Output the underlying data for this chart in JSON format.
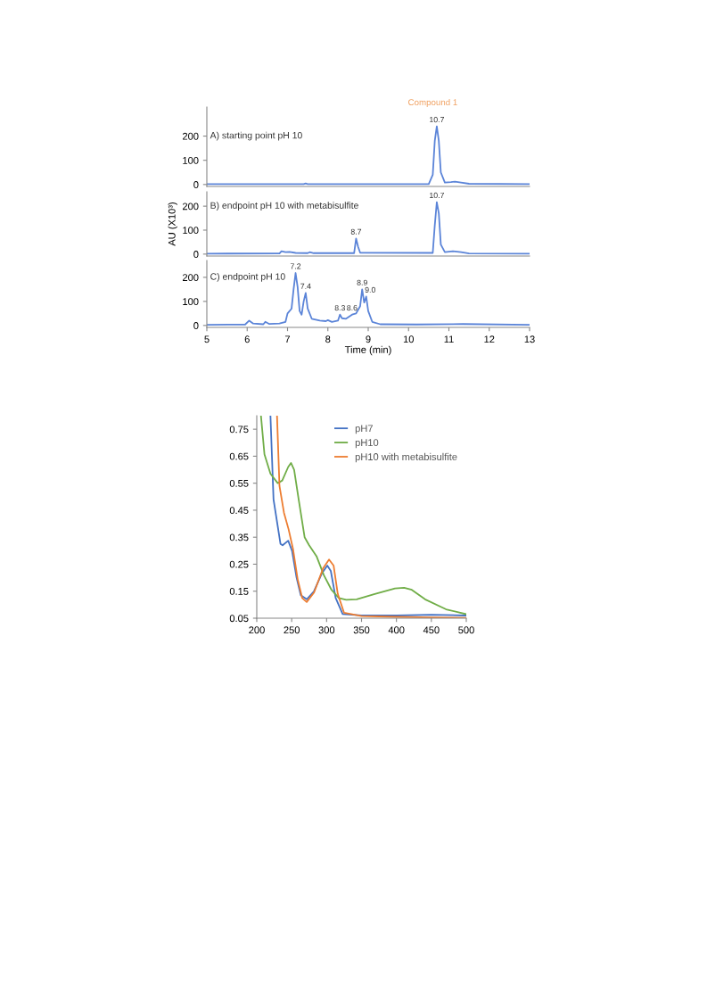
{
  "chart_data": [
    {
      "type": "line",
      "title": "A) starting point pH 10",
      "xlim": [
        5,
        13
      ],
      "xticks": [
        5,
        6,
        7,
        8,
        9,
        10,
        11,
        12,
        13
      ],
      "ylim": [
        -8,
        320
      ],
      "yticks": [
        0,
        100,
        200
      ],
      "tick_labels": "y",
      "grid": false,
      "legend": false,
      "series": [
        {
          "color": "#5b84d8",
          "x": [
            5,
            7.4,
            7.45,
            7.5,
            10.5,
            10.6,
            10.65,
            10.7,
            10.75,
            10.8,
            10.9,
            11.05,
            11.15,
            11.3,
            11.5,
            13
          ],
          "values": [
            2,
            2,
            4,
            2,
            2,
            40,
            180,
            240,
            180,
            50,
            8,
            10,
            12,
            8,
            3,
            2
          ]
        }
      ],
      "annotations": [
        "Compound 1",
        {
          "text": "10.7",
          "x": 10.7,
          "y": 240
        }
      ]
    },
    {
      "type": "line",
      "title": "B) endpoint pH 10 with metabisulfite",
      "ylabel": "AU (X10³)",
      "xlim": [
        5,
        13
      ],
      "xticks": [
        5,
        6,
        7,
        8,
        9,
        10,
        11,
        12,
        13
      ],
      "ylim": [
        -8,
        260
      ],
      "yticks": [
        0,
        100,
        200
      ],
      "tick_labels": "y",
      "grid": false,
      "legend": false,
      "series": [
        {
          "color": "#5b84d8",
          "x": [
            5,
            6.8,
            6.85,
            6.95,
            7.05,
            7.2,
            7.5,
            7.55,
            7.65,
            8.65,
            8.7,
            8.75,
            8.8,
            10.6,
            10.65,
            10.7,
            10.75,
            10.8,
            10.9,
            11.1,
            11.3,
            11.5,
            13
          ],
          "values": [
            2,
            3,
            12,
            8,
            9,
            5,
            4,
            8,
            4,
            4,
            65,
            30,
            6,
            5,
            120,
            217,
            170,
            40,
            8,
            12,
            8,
            3,
            2
          ]
        }
      ],
      "annotations": [
        {
          "text": "8.7",
          "x": 8.7,
          "y": 65
        },
        {
          "text": "10.7",
          "x": 10.7,
          "y": 217
        }
      ]
    },
    {
      "type": "line",
      "title": "C) endpoint pH 10",
      "xlabel": "Time (min)",
      "xlim": [
        5,
        13
      ],
      "xticks": [
        5,
        6,
        7,
        8,
        9,
        10,
        11,
        12,
        13
      ],
      "ylim": [
        -8,
        270
      ],
      "yticks": [
        0,
        100,
        200
      ],
      "grid": false,
      "legend": false,
      "series": [
        {
          "color": "#5b84d8",
          "x": [
            5,
            5.95,
            6.05,
            6.15,
            6.4,
            6.45,
            6.55,
            6.8,
            6.95,
            7.0,
            7.1,
            7.15,
            7.2,
            7.25,
            7.3,
            7.35,
            7.4,
            7.45,
            7.5,
            7.6,
            7.8,
            7.95,
            8.0,
            8.1,
            8.25,
            8.3,
            8.35,
            8.45,
            8.6,
            8.7,
            8.8,
            8.85,
            8.9,
            8.95,
            9.0,
            9.1,
            9.3,
            10.2,
            11.35,
            13
          ],
          "values": [
            3,
            4,
            20,
            8,
            5,
            15,
            6,
            8,
            15,
            50,
            70,
            150,
            218,
            160,
            60,
            45,
            100,
            135,
            70,
            28,
            20,
            18,
            22,
            15,
            20,
            45,
            30,
            28,
            45,
            50,
            80,
            150,
            95,
            120,
            60,
            15,
            5,
            4,
            6,
            3
          ]
        }
      ],
      "annotations": [
        {
          "text": "7.2",
          "x": 7.2,
          "y": 218
        },
        {
          "text": "7.4",
          "x": 7.45,
          "y": 135
        },
        {
          "text": "8.3",
          "x": 8.3,
          "y": 45
        },
        {
          "text": "8.6",
          "x": 8.6,
          "y": 45
        },
        {
          "text": "8.9",
          "x": 8.85,
          "y": 150
        },
        {
          "text": "9.0",
          "x": 9.05,
          "y": 120
        }
      ]
    },
    {
      "type": "line",
      "xlim": [
        200,
        500
      ],
      "xticks": [
        200,
        250,
        300,
        350,
        400,
        450,
        500
      ],
      "ylim": [
        0.05,
        0.8
      ],
      "yticks": [
        0.05,
        0.15,
        0.25,
        0.35,
        0.45,
        0.55,
        0.65,
        0.75
      ],
      "grid": false,
      "legend": "top right",
      "series": [
        {
          "name": "pH7",
          "color": "#4472c4",
          "x": [
            219.6,
            224,
            234,
            237,
            245,
            250.5,
            257,
            263,
            271.6,
            282,
            293,
            301,
            306,
            313,
            323,
            350,
            400,
            450,
            500
          ],
          "values": [
            0.8,
            0.49,
            0.325,
            0.32,
            0.337,
            0.3,
            0.2,
            0.135,
            0.12,
            0.15,
            0.215,
            0.245,
            0.225,
            0.125,
            0.065,
            0.06,
            0.06,
            0.063,
            0.06
          ]
        },
        {
          "name": "pH10",
          "color": "#70ad47",
          "x": [
            206,
            211,
            219.6,
            230,
            236.5,
            245,
            249,
            253.5,
            260,
            268.5,
            275,
            285.5,
            296,
            307,
            317.5,
            328,
            343,
            369,
            398,
            411,
            422,
            441,
            471,
            500
          ],
          "values": [
            0.8,
            0.657,
            0.585,
            0.55,
            0.56,
            0.61,
            0.625,
            0.6,
            0.49,
            0.35,
            0.32,
            0.28,
            0.21,
            0.155,
            0.125,
            0.118,
            0.12,
            0.14,
            0.16,
            0.163,
            0.155,
            0.12,
            0.083,
            0.065
          ]
        },
        {
          "name": "pH10 with metabisulfite",
          "color": "#ed7d31",
          "x": [
            229,
            232.5,
            239,
            245.5,
            252,
            258.5,
            265,
            271.5,
            282,
            295,
            303.5,
            310,
            316,
            325,
            350,
            400,
            450,
            500
          ],
          "values": [
            0.8,
            0.54,
            0.44,
            0.38,
            0.305,
            0.195,
            0.125,
            0.11,
            0.145,
            0.235,
            0.267,
            0.245,
            0.14,
            0.07,
            0.058,
            0.055,
            0.053,
            0.051
          ]
        }
      ]
    }
  ]
}
